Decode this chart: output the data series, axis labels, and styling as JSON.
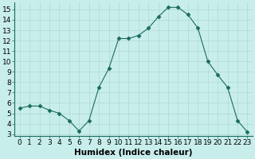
{
  "x": [
    0,
    1,
    2,
    3,
    4,
    5,
    6,
    7,
    8,
    9,
    10,
    11,
    12,
    13,
    14,
    15,
    16,
    17,
    18,
    19,
    20,
    21,
    22,
    23
  ],
  "y": [
    5.5,
    5.7,
    5.7,
    5.3,
    5.0,
    4.3,
    3.3,
    4.3,
    7.5,
    9.3,
    12.2,
    12.2,
    12.5,
    13.2,
    14.3,
    15.2,
    15.2,
    14.5,
    13.2,
    10.0,
    8.7,
    7.5,
    4.3,
    3.2
  ],
  "xlabel": "Humidex (Indice chaleur)",
  "xlim": [
    -0.5,
    23.5
  ],
  "ylim": [
    2.8,
    15.7
  ],
  "yticks": [
    3,
    4,
    5,
    6,
    7,
    8,
    9,
    10,
    11,
    12,
    13,
    14,
    15
  ],
  "xtick_labels": [
    "0",
    "1",
    "2",
    "3",
    "4",
    "5",
    "6",
    "7",
    "8",
    "9",
    "10",
    "11",
    "12",
    "13",
    "14",
    "15",
    "16",
    "17",
    "18",
    "19",
    "20",
    "21",
    "22",
    "23"
  ],
  "line_color": "#1a6b5e",
  "marker": "D",
  "marker_size": 2.5,
  "bg_color": "#c8eeec",
  "grid_color": "#b0d8d5",
  "xlabel_fontsize": 7.5,
  "tick_fontsize": 6.5
}
